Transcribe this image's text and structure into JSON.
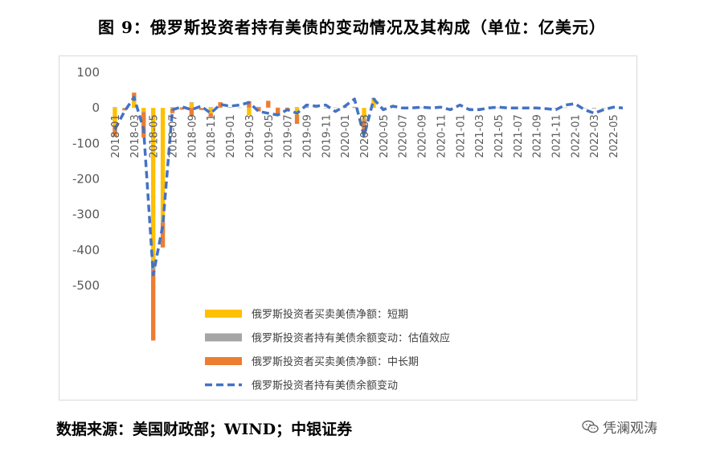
{
  "title": "图 9：俄罗斯投资者持有美债的变动情况及其构成（单位：亿美元）",
  "source": "数据来源：美国财政部；WIND；中银证券",
  "watermark": "凭澜观涛",
  "icons": {
    "watermark": "wechat-icon"
  },
  "chart_data": {
    "type": "bar",
    "y_range": [
      -500,
      100
    ],
    "y_ticks": [
      "100",
      "0",
      "-100",
      "-200",
      "-300",
      "-400",
      "-500"
    ],
    "y_tick_values": [
      100,
      0,
      -100,
      -200,
      -300,
      -400,
      -500
    ],
    "grid": false,
    "legend_placement": "bottom",
    "categories": [
      "2018-01",
      "2018-02",
      "2018-03",
      "2018-04",
      "2018-05",
      "2018-06",
      "2018-07",
      "2018-08",
      "2018-09",
      "2018-10",
      "2018-11",
      "2018-12",
      "2019-01",
      "2019-02",
      "2019-03",
      "2019-04",
      "2019-05",
      "2019-06",
      "2019-07",
      "2019-08",
      "2019-09",
      "2019-10",
      "2019-11",
      "2019-12",
      "2020-01",
      "2020-02",
      "2020-03",
      "2020-04",
      "2020-05",
      "2020-06",
      "2020-07",
      "2020-08",
      "2020-09",
      "2020-10",
      "2020-11",
      "2020-12",
      "2021-01",
      "2021-02",
      "2021-03",
      "2021-04",
      "2021-05",
      "2021-06",
      "2021-07",
      "2021-08",
      "2021-09",
      "2021-10",
      "2021-11",
      "2021-12",
      "2022-01",
      "2022-02",
      "2022-03",
      "2022-04",
      "2022-05",
      "2022-06"
    ],
    "x_tick_labels": [
      "2018-01",
      "2018-03",
      "2018-05",
      "2018-07",
      "2018-09",
      "2018-11",
      "2019-01",
      "2019-03",
      "2019-05",
      "2019-07",
      "2019-09",
      "2019-11",
      "2020-01",
      "2020-03",
      "2020-05",
      "2020-07",
      "2020-09",
      "2020-11",
      "2021-01",
      "2021-03",
      "2021-05",
      "2021-07",
      "2021-09",
      "2021-11",
      "2022-01",
      "2022-03",
      "2022-05"
    ],
    "series": [
      {
        "name": "俄罗斯投资者买卖美债净额：短期",
        "kind": "bar",
        "color": "#FFC000",
        "values": [
          -50,
          0,
          25,
          -10,
          -450,
          -320,
          -5,
          0,
          15,
          0,
          -15,
          0,
          0,
          0,
          -20,
          0,
          0,
          0,
          0,
          -20,
          0,
          0,
          0,
          0,
          0,
          0,
          -30,
          25,
          0,
          0,
          0,
          0,
          0,
          0,
          0,
          0,
          0,
          0,
          0,
          0,
          0,
          0,
          0,
          0,
          0,
          0,
          0,
          0,
          0,
          0,
          0,
          0,
          0,
          0
        ]
      },
      {
        "name": "俄罗斯投资者持有美债余额变动：估值效应",
        "kind": "bar",
        "color": "#A5A5A5",
        "values": [
          2,
          -2,
          3,
          -3,
          -5,
          -3,
          2,
          2,
          1,
          -1,
          2,
          1,
          2,
          1,
          1,
          3,
          2,
          1,
          1,
          2,
          3,
          1,
          -1,
          1,
          3,
          3,
          -5,
          3,
          1,
          1,
          1,
          0,
          1,
          0,
          1,
          -1,
          0,
          -1,
          -1,
          0,
          1,
          0,
          0,
          0,
          0,
          -1,
          -1,
          1,
          0,
          -1,
          -2,
          -1,
          0,
          0
        ]
      },
      {
        "name": "俄罗斯投资者买卖美债净额：中长期",
        "kind": "bar",
        "color": "#ED7D31",
        "values": [
          -30,
          -5,
          15,
          -70,
          -200,
          -70,
          -10,
          -5,
          -22,
          -5,
          -10,
          15,
          0,
          0,
          18,
          -10,
          18,
          -20,
          -5,
          -25,
          0,
          0,
          0,
          0,
          0,
          0,
          -40,
          0,
          0,
          0,
          0,
          0,
          0,
          0,
          0,
          -5,
          0,
          0,
          0,
          0,
          0,
          0,
          0,
          0,
          0,
          0,
          0,
          0,
          0,
          0,
          0,
          0,
          0,
          0
        ]
      },
      {
        "name": "俄罗斯投资者持有美债余额变动",
        "kind": "line",
        "color": "#4472C4",
        "values": [
          -60,
          -10,
          30,
          -60,
          -470,
          -330,
          -5,
          3,
          -5,
          5,
          -15,
          10,
          5,
          8,
          15,
          -10,
          -15,
          -20,
          -5,
          -15,
          8,
          5,
          8,
          -10,
          5,
          25,
          -80,
          25,
          -5,
          5,
          0,
          0,
          2,
          0,
          2,
          -5,
          8,
          -5,
          -5,
          0,
          2,
          0,
          0,
          0,
          0,
          -2,
          -5,
          8,
          12,
          -5,
          -15,
          -5,
          2,
          0
        ]
      }
    ]
  }
}
